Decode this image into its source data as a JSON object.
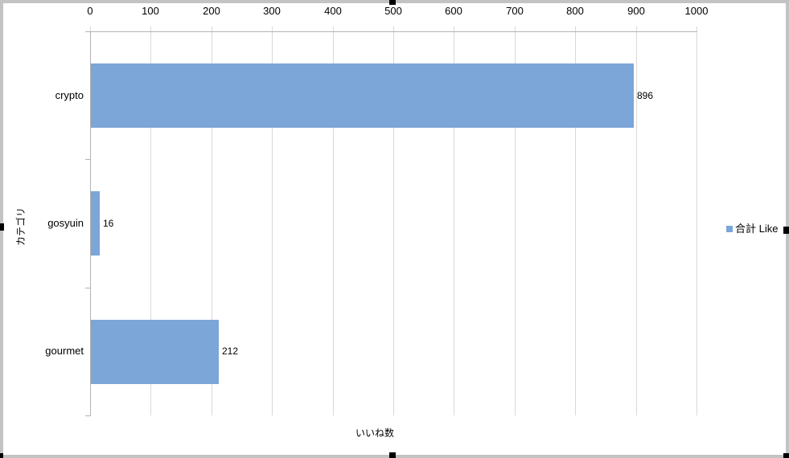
{
  "chart_data": {
    "type": "bar",
    "orientation": "horizontal",
    "categories": [
      "crypto",
      "gosyuin",
      "gourmet"
    ],
    "series": [
      {
        "name": "合計 Like",
        "values": [
          896,
          16,
          212
        ]
      }
    ],
    "data_labels": [
      "896",
      "16",
      "212"
    ],
    "xlabel": "いいね数",
    "ylabel": "カテゴリ",
    "xlim": [
      0,
      1000
    ],
    "x_ticks": [
      0,
      100,
      200,
      300,
      400,
      500,
      600,
      700,
      800,
      900,
      1000
    ],
    "grid": true,
    "legend_position": "right",
    "colors": {
      "bar": "#7ca5d8",
      "gridline": "#d8d8d8",
      "axis_line": "#b3b3b3",
      "text": "#000000",
      "frame": "#c3c3c3",
      "handle": "#000000",
      "background": "#ffffff"
    }
  },
  "legend": {
    "entry": "合計 Like"
  }
}
